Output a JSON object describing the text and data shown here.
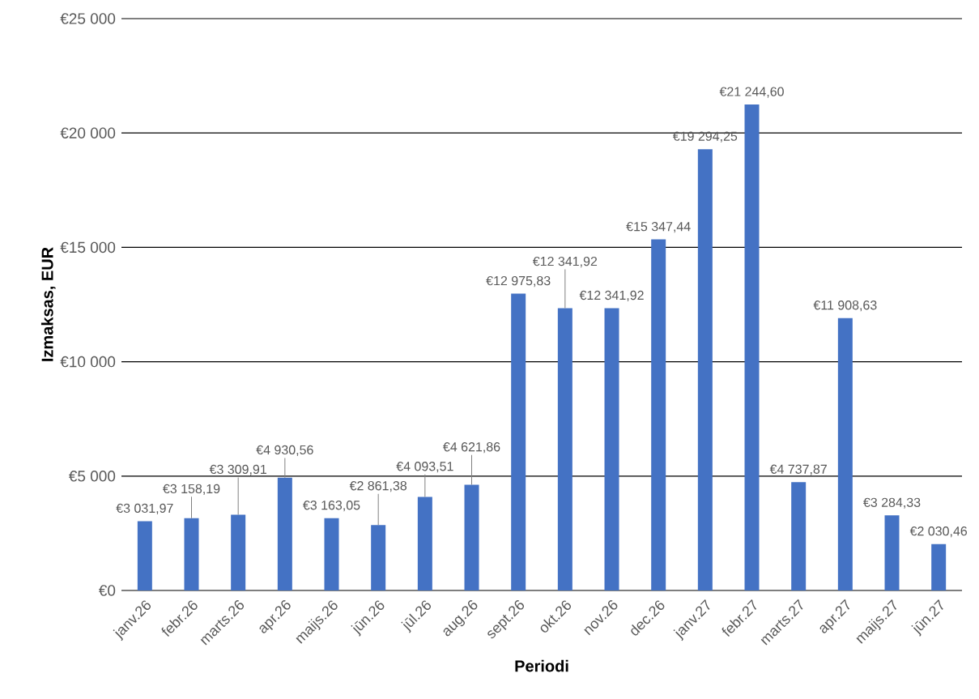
{
  "chart_data": {
    "type": "bar",
    "xlabel": "Periodi",
    "ylabel": "Izmaksas, EUR",
    "categories": [
      "janv.26",
      "febr.26",
      "marts.26",
      "apr.26",
      "maijs.26",
      "jūn.26",
      "jūl.26",
      "aug.26",
      "sept.26",
      "okt.26",
      "nov.26",
      "dec.26",
      "janv.27",
      "febr.27",
      "marts.27",
      "apr.27",
      "maijs.27",
      "jūn.27"
    ],
    "values": [
      3031.97,
      3158.19,
      3309.91,
      4930.56,
      3163.05,
      2861.38,
      4093.51,
      4621.86,
      12975.83,
      12341.92,
      12341.92,
      15347.44,
      19294.25,
      21244.6,
      4737.87,
      11908.63,
      3284.33,
      2030.46
    ],
    "value_labels": [
      "€3 031,97",
      "€3 158,19",
      "€3 309,91",
      "€4 930,56",
      "€3 163,05",
      "€2 861,38",
      "€4 093,51",
      "€4 621,86",
      "€12 975,83",
      "€12 341,92",
      "€12 341,92",
      "€15 347,44",
      "€19 294,25",
      "€21 244,60",
      "€4 737,87",
      "€11 908,63",
      "€3 284,33",
      "€2 030,46"
    ],
    "color": "#4472c4",
    "ylim": [
      0,
      25000
    ],
    "yticks": [
      {
        "value": 0,
        "label": "€0"
      },
      {
        "value": 5000,
        "label": "€5 000"
      },
      {
        "value": 10000,
        "label": "€10 000"
      },
      {
        "value": 15000,
        "label": "€15 000"
      },
      {
        "value": 20000,
        "label": "€20 000"
      },
      {
        "value": 25000,
        "label": "€25 000"
      }
    ],
    "grid": "y"
  }
}
